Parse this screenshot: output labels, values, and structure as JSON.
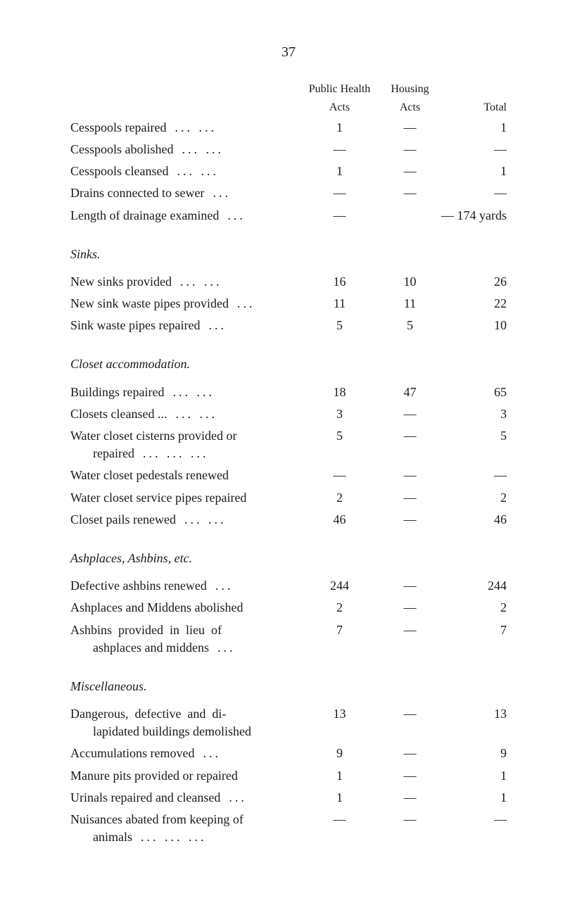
{
  "pageNumber": "37",
  "headers": {
    "col1_line1": "Public Health",
    "col1_line2": "Acts",
    "col2_line1": "Housing",
    "col2_line2": "Acts",
    "col3": "Total"
  },
  "section1": {
    "rows": [
      {
        "desc": "Cesspools repaired",
        "dots": "...   ...",
        "c1": "1",
        "c2": "—",
        "c3": "1"
      },
      {
        "desc": "Cesspools abolished",
        "dots": "...   ...",
        "c1": "—",
        "c2": "—",
        "c3": "—"
      },
      {
        "desc": "Cesspools cleansed",
        "dots": "...   ...",
        "c1": "1",
        "c2": "—",
        "c3": "1"
      },
      {
        "desc": "Drains connected to sewer",
        "dots": "...",
        "c1": "—",
        "c2": "—",
        "c3": "—"
      },
      {
        "desc": "Length of drainage examined",
        "dots": "...",
        "c1": "—",
        "c2": "",
        "c3": "— 174 yards",
        "span": true
      }
    ]
  },
  "section2": {
    "title": "Sinks.",
    "rows": [
      {
        "desc": "New sinks provided",
        "dots": "...   ...",
        "c1": "16",
        "c2": "10",
        "c3": "26"
      },
      {
        "desc": "New sink waste pipes provided",
        "dots": "...",
        "c1": "11",
        "c2": "11",
        "c3": "22"
      },
      {
        "desc": "Sink waste pipes repaired",
        "dots": "...",
        "c1": "5",
        "c2": "5",
        "c3": "10"
      }
    ]
  },
  "section3": {
    "title": "Closet accommodation.",
    "rows": [
      {
        "desc": "Buildings repaired",
        "dots": "...   ...",
        "c1": "18",
        "c2": "47",
        "c3": "65"
      },
      {
        "desc": "Closets cleansed ...",
        "dots": "...   ...",
        "c1": "3",
        "c2": "—",
        "c3": "3"
      },
      {
        "desc": "Water closet cisterns provided or",
        "desc2": "repaired",
        "dots": "...   ...   ...",
        "c1": "5",
        "c2": "—",
        "c3": "5",
        "multiline": true,
        "indent": true
      },
      {
        "desc": "Water closet pedestals renewed",
        "dots": "",
        "c1": "—",
        "c2": "—",
        "c3": "—"
      },
      {
        "desc": "Water closet service pipes repaired",
        "dots": "",
        "c1": "2",
        "c2": "—",
        "c3": "2"
      },
      {
        "desc": "Closet pails renewed",
        "dots": "...   ...",
        "c1": "46",
        "c2": "—",
        "c3": "46"
      }
    ]
  },
  "section4": {
    "title": "Ashplaces, Ashbins, etc.",
    "rows": [
      {
        "desc": "Defective ashbins renewed",
        "dots": "...",
        "c1": "244",
        "c2": "—",
        "c3": "244"
      },
      {
        "desc": "Ashplaces and Middens abolished",
        "dots": "",
        "c1": "2",
        "c2": "—",
        "c3": "2"
      },
      {
        "desc": "Ashbins  provided  in  lieu  of",
        "desc2": "ashplaces and middens",
        "dots": "...",
        "c1": "7",
        "c2": "—",
        "c3": "7",
        "multiline": true,
        "indent": true
      }
    ]
  },
  "section5": {
    "title": "Miscellaneous.",
    "rows": [
      {
        "desc": "Dangerous,  defective  and  di-",
        "desc2": "lapidated buildings demolished",
        "dots": "",
        "c1": "13",
        "c2": "—",
        "c3": "13",
        "multiline": true,
        "indent": true
      },
      {
        "desc": "Accumulations removed",
        "dots": "...",
        "c1": "9",
        "c2": "—",
        "c3": "9"
      },
      {
        "desc": "Manure pits provided or repaired",
        "dots": "",
        "c1": "1",
        "c2": "—",
        "c3": "1"
      },
      {
        "desc": "Urinals repaired and cleansed",
        "dots": "...",
        "c1": "1",
        "c2": "—",
        "c3": "1"
      },
      {
        "desc": "Nuisances abated from keeping of",
        "desc2": "animals",
        "dots": "...   ...   ...",
        "c1": "—",
        "c2": "—",
        "c3": "—",
        "multiline": true,
        "indent": true
      }
    ]
  }
}
